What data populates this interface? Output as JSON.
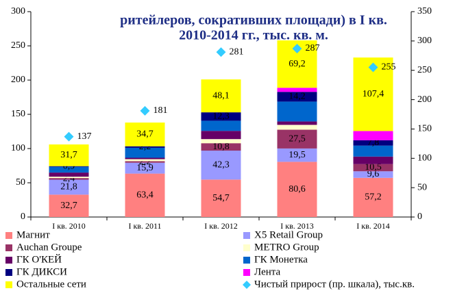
{
  "chart_data": {
    "type": "bar",
    "stacked": true,
    "title": [
      "ритейлеров, сокративших площади) в I кв.",
      "2010-2014 гг., тыс. кв. м."
    ],
    "categories": [
      "I кв. 2010",
      "I кв. 2011",
      "I кв. 2012",
      "I кв. 2013",
      "I кв. 2014"
    ],
    "ylim": [
      0,
      300
    ],
    "yticks": [
      0,
      50,
      100,
      150,
      200,
      250,
      300
    ],
    "y2lim": [
      0,
      350
    ],
    "y2ticks": [
      0,
      50,
      100,
      150,
      200,
      250,
      300,
      350
    ],
    "grid": false,
    "legend": "bottom",
    "series": [
      {
        "name": "Магнит",
        "color": "#ff8080",
        "values": [
          32.7,
          63.4,
          54.7,
          80.6,
          57.2
        ],
        "value_labels": [
          "32,7",
          "63,4",
          "54,7",
          "80,6",
          "57,2"
        ]
      },
      {
        "name": "X5 Retail Group",
        "color": "#9999ff",
        "values": [
          21.8,
          15.9,
          42.3,
          19.5,
          9.6
        ],
        "value_labels": [
          "21,8",
          "15,9",
          "42,3",
          "19,5",
          "9,6"
        ]
      },
      {
        "name": "Auchan Groupe",
        "color": "#993366",
        "values": [
          2.4,
          2.2,
          10.8,
          27.5,
          10.5
        ],
        "value_labels": [
          "2,4",
          "2,2",
          "10,8",
          "27,5",
          "10,5"
        ]
      },
      {
        "name": "METRO Group",
        "color": "#ffffcc",
        "values": [
          2,
          3,
          6,
          7,
          0
        ]
      },
      {
        "name": "ГК О'КЕЙ",
        "color": "#660066",
        "values": [
          6,
          2,
          12,
          5,
          11
        ]
      },
      {
        "name": "ГК Монетка",
        "color": "#0066cc",
        "values": [
          8.5,
          14.6,
          14.8,
          29,
          16
        ]
      },
      {
        "name": "ГК ДИКСИ",
        "color": "#000080",
        "values": [
          0.9,
          2.2,
          12.3,
          14.2,
          7.8
        ],
        "value_labels": [
          "0,9",
          "2,2",
          "12,3",
          "14,2",
          "7,8"
        ]
      },
      {
        "name": "Лента",
        "color": "#ff00ff",
        "values": [
          0,
          0,
          0,
          6,
          13.5
        ]
      },
      {
        "name": "Остальные сети",
        "color": "#ffff00",
        "values": [
          31.7,
          34.7,
          48.1,
          69.2,
          107.4
        ],
        "value_labels": [
          "31,7",
          "34,7",
          "48,1",
          "69,2",
          "107,4"
        ]
      },
      {
        "name": "Чистый прирост (пр. шкала), тыс.кв.",
        "color": "#33ccff",
        "axis": "y2",
        "marker": "diamond",
        "values": [
          137,
          181,
          281,
          287,
          255
        ]
      }
    ]
  }
}
